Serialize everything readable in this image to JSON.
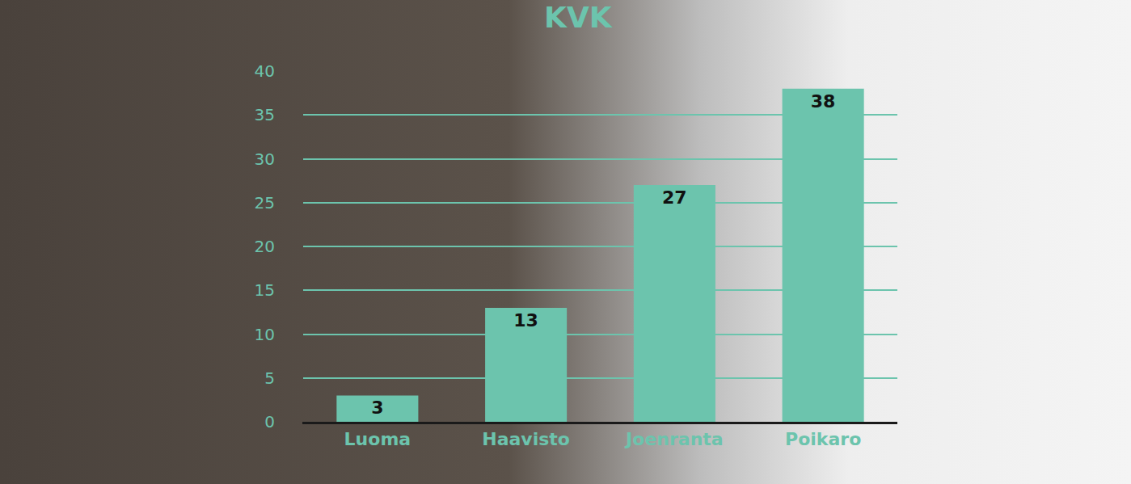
{
  "chart_data": {
    "type": "bar",
    "title": "KVK",
    "categories": [
      "Luoma",
      "Haavisto",
      "Joenranta",
      "Poikaro"
    ],
    "values": [
      3,
      13,
      27,
      38
    ],
    "color": "#6cc4ad",
    "ylim": [
      0,
      40
    ],
    "yticks": [
      0,
      5,
      10,
      15,
      20,
      25,
      30,
      35,
      40
    ],
    "grid": true,
    "data_labels": true
  }
}
